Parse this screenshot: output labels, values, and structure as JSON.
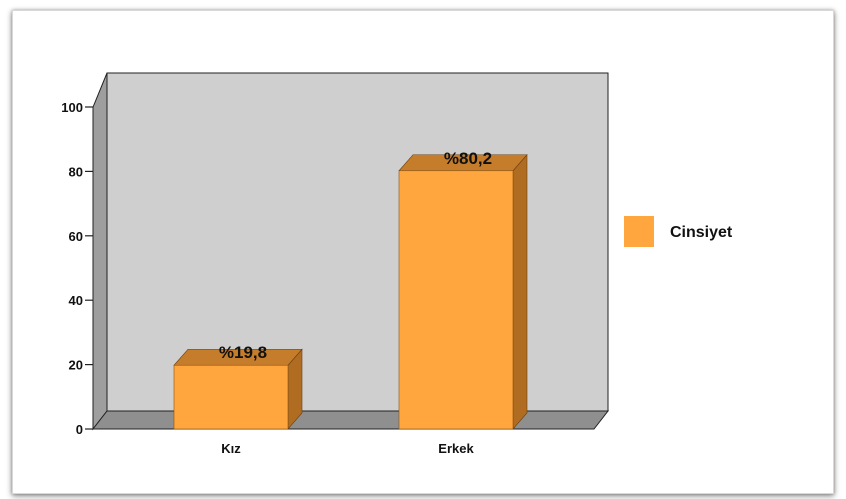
{
  "chart_data": {
    "type": "bar",
    "categories": [
      "Kız",
      "Erkek"
    ],
    "series": [
      {
        "name": "Cinsiyet",
        "values": [
          19.8,
          80.2
        ],
        "data_labels": [
          "%19,8",
          "%80,2"
        ]
      }
    ],
    "y_ticks": [
      "0",
      "20",
      "40",
      "60",
      "80",
      "100"
    ],
    "ylim": [
      0,
      100
    ],
    "grid": false,
    "legend_position": "right",
    "colors": {
      "bar_front": "#ffa63f",
      "bar_side": "#b06d22",
      "bar_top": "#c67d2b",
      "plot_back_wall": "#cfcfcf",
      "plot_side_wall": "#9e9e9e",
      "plot_floor": "#8f8f8f"
    }
  }
}
